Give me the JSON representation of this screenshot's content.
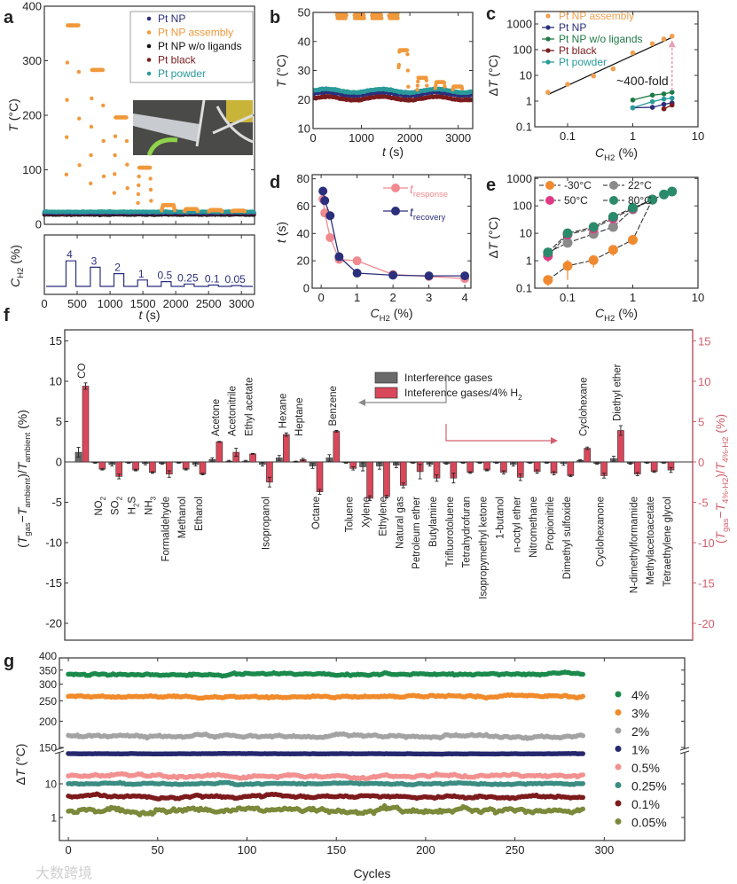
{
  "watermark": "大数跨境",
  "chart_data": [
    {
      "id": "a",
      "panel_label": "a",
      "type": "scatter",
      "xlabel": "*t* (s)",
      "ylabel": "*T* (°C)",
      "xlim": [
        0,
        3200
      ],
      "ylim": [
        0,
        400
      ],
      "xticks": [
        0,
        500,
        1000,
        1500,
        2000,
        2500,
        3000
      ],
      "yticks": [
        0,
        100,
        200,
        300,
        400
      ],
      "legend": [
        "Pt NP",
        "Pt NP assembly",
        "Pt NP w/o ligands",
        "Pt black",
        "Pt powder"
      ],
      "legend_colors": [
        "#2b2f7c",
        "#f0993c",
        "#111111",
        "#7a1c1f",
        "#2a9a9a"
      ],
      "legend_placement": "top-right",
      "baselines": {
        "Pt NP": 21,
        "Pt NP w/o ligands": 18,
        "Pt black": 20,
        "Pt powder": 23
      },
      "assembly_pulses": {
        "start_s": [
          330,
          700,
          1060,
          1420,
          1780,
          2130,
          2500,
          2850
        ],
        "duration_s": 190,
        "plateau_C": [
          365,
          283,
          196,
          104,
          35,
          28,
          26,
          25
        ],
        "baseline_C": 23
      },
      "inset": "photo",
      "sub": {
        "ylabel": "*C*_{H2} (%)",
        "concentrations": [
          4,
          3,
          2,
          1,
          0.5,
          0.25,
          0.1,
          0.05
        ],
        "step_labels": [
          "4",
          "3",
          "2",
          "1",
          "0.5",
          "0.25",
          "0.1",
          "0.05"
        ]
      }
    },
    {
      "id": "b",
      "panel_label": "b",
      "type": "scatter",
      "xlabel": "*t* (s)",
      "ylabel": "*T* (°C)",
      "xlim": [
        0,
        3300
      ],
      "ylim": [
        10,
        50
      ],
      "xticks": [
        0,
        1000,
        2000,
        3000
      ],
      "yticks": [
        10,
        20,
        30,
        40,
        50
      ],
      "assembly_pulses": {
        "start_s": [
          480,
          850,
          1210,
          1560,
          1760,
          2150,
          2520,
          2880
        ],
        "duration_s": 190,
        "plateau_C": [
          365,
          283,
          196,
          104,
          37,
          27.5,
          26,
          24.5
        ],
        "baseline_C": 23
      },
      "baselines": {
        "Pt NP": 22,
        "Pt NP w/o ligands": 22.6,
        "Pt black": 20.4,
        "Pt powder": 23
      }
    },
    {
      "id": "c",
      "panel_label": "c",
      "type": "line",
      "xlabel": "*C*_{H2} (%)",
      "ylabel": "Δ*T* (°C)",
      "xscale": "log",
      "yscale": "log",
      "xlim": [
        0.0314,
        10
      ],
      "ylim": [
        0.1,
        3040
      ],
      "xticks": [
        0.1,
        1,
        10
      ],
      "xticklabels": [
        "0.1",
        "1",
        "10"
      ],
      "yticks": [
        0.1,
        1,
        10,
        100,
        1000
      ],
      "yticklabels": [
        "0.1",
        "1",
        "10",
        "100",
        "1000"
      ],
      "series": [
        {
          "name": "Pt NP assembly",
          "color": "#f0a050",
          "line": false,
          "x": [
            0.05,
            0.1,
            0.25,
            0.5,
            1,
            2,
            3,
            4
          ],
          "y": [
            2.2,
            4.5,
            9.5,
            18,
            75,
            170,
            260,
            335
          ]
        },
        {
          "name": "Pt NP",
          "color": "#2b2f7c",
          "line": true,
          "x": [
            1,
            2,
            3,
            4
          ],
          "y": [
            0.55,
            0.57,
            0.75,
            0.85
          ]
        },
        {
          "name": "Pt NP w/o ligands",
          "color": "#1f7a45",
          "line": true,
          "x": [
            1,
            2,
            3,
            4
          ],
          "y": [
            1.1,
            1.7,
            1.9,
            2.2
          ]
        },
        {
          "name": "Pt black",
          "color": "#7a1c1f",
          "line": true,
          "x": [
            3,
            4
          ],
          "y": [
            0.5,
            0.7
          ]
        },
        {
          "name": "Pt powder",
          "color": "#2a9a9a",
          "line": true,
          "x": [
            1,
            2,
            3,
            4
          ],
          "y": [
            0.55,
            0.95,
            1.2,
            1.3
          ]
        }
      ],
      "fit": {
        "x": [
          0.05,
          4
        ],
        "y": [
          1.8,
          300
        ]
      },
      "annotation": "~400-fold",
      "annotation_arrow": {
        "x": 4,
        "from_y": 2.6,
        "to_y": 200
      },
      "legend_placement": "top-left"
    },
    {
      "id": "d",
      "panel_label": "d",
      "type": "line",
      "xlabel": "*C*_{H2} (%)",
      "ylabel": "*t* (s)",
      "xlim": [
        -0.25,
        4.17
      ],
      "ylim": [
        0,
        83
      ],
      "xticks": [
        0,
        1,
        2,
        3,
        4
      ],
      "yticks": [
        0,
        20,
        40,
        60,
        80
      ],
      "series": [
        {
          "name": "*t*_{response}",
          "color": "#f08a8f",
          "x": [
            0.05,
            0.1,
            0.25,
            0.5,
            1,
            2,
            3,
            4
          ],
          "y": [
            65,
            55,
            37,
            21,
            20,
            10,
            8.5,
            7
          ]
        },
        {
          "name": "*t*_{recovery}",
          "color": "#2b2f7c",
          "x": [
            0.05,
            0.1,
            0.25,
            0.5,
            1,
            2,
            3,
            4
          ],
          "y": [
            71,
            64,
            53,
            23,
            11,
            9.5,
            9,
            9
          ]
        }
      ],
      "legend_placement": "top-right"
    },
    {
      "id": "e",
      "panel_label": "e",
      "type": "line",
      "xlabel": "*C*_{H2} (%)",
      "ylabel": "Δ*T* (°C)",
      "xscale": "log",
      "yscale": "log",
      "xlim": [
        0.0314,
        10
      ],
      "ylim": [
        0.1,
        1100
      ],
      "xticks": [
        0.1,
        1,
        10
      ],
      "xticklabels": [
        "0.1",
        "1",
        "10"
      ],
      "yticks": [
        0.1,
        1,
        10,
        100,
        1000
      ],
      "yticklabels": [
        "0.1",
        "1",
        "10",
        "100",
        "1000"
      ],
      "series": [
        {
          "name": "-30°C",
          "color": "#f08a30",
          "x": [
            0.05,
            0.1,
            0.25,
            0.5,
            1,
            2
          ],
          "y": [
            0.2,
            0.65,
            1.05,
            2.5,
            5.8,
            170
          ],
          "err": [
            0.08,
            0.45,
            0.5,
            1.0,
            2.0,
            0
          ]
        },
        {
          "name": "22°C",
          "color": "#8a8a8a",
          "x": [
            0.05,
            0.1,
            0.25,
            0.5,
            1,
            2
          ],
          "y": [
            2.0,
            4.5,
            9.5,
            17,
            75,
            170
          ],
          "err": [
            0,
            0,
            0,
            0,
            0,
            0
          ]
        },
        {
          "name": "50°C",
          "color": "#e03a85",
          "x": [
            0.05,
            0.1,
            0.25,
            0.5,
            1,
            2
          ],
          "y": [
            1.5,
            9,
            15,
            35,
            80,
            170
          ],
          "err": [
            0.6,
            0,
            0,
            0,
            0,
            0
          ]
        },
        {
          "name": "80°C",
          "color": "#2a8a6c",
          "x": [
            0.05,
            0.1,
            0.25,
            0.5,
            1,
            2,
            3,
            4
          ],
          "y": [
            2.0,
            10,
            17,
            40,
            85,
            170,
            260,
            335
          ],
          "err": [
            0,
            0,
            0,
            0,
            0,
            0,
            0,
            0
          ]
        }
      ],
      "legend_placement": "top"
    },
    {
      "id": "f",
      "panel_label": "f",
      "type": "bar",
      "ylabel": "(*T*_{gas}−*T*_{ambient})/*T*_{ambient} (%)",
      "ylabel_right": "(*T*_{gas}−*T*_{4%-H2})/*T*_{4%-H2} (%)",
      "ylim": [
        -20,
        15
      ],
      "yticks": [
        -20,
        -15,
        -10,
        -5,
        0,
        5,
        10,
        15
      ],
      "legend": [
        "Interference gases",
        "Inteference gases/4% H_{2}"
      ],
      "legend_colors": [
        "#6a6a6a",
        "#d9475a"
      ],
      "right_axis_color": "#d2606e",
      "categories": [
        "CO",
        "NO_{2}",
        "SO_{2}",
        "H_{2}S",
        "NH_{3}",
        "Formaldehyde",
        "Methanol",
        "Ethanol",
        "Acetone",
        "Acetonitrile",
        "Ethyl acetate",
        "Isopropanol",
        "Hexane",
        "Heptane",
        "Octane",
        "Benzene",
        "Toluene",
        "Xylene",
        "Ethylene",
        "Natural gas",
        "Petroleum ether",
        "Butylamine",
        "Trifluorotoluene",
        "Tetrahydrofuran",
        "Isopropymethyl ketone",
        "1-butanol",
        "n-octyl ether",
        "Nitromethane",
        "Propionitrile",
        "Dimethyl sulfoxide",
        "Cyclohexane",
        "Cyclohexanone",
        "Diethyl ether",
        "N-dimethylformamide",
        "Methylacetoacetate",
        "Tetraethylene glycol"
      ],
      "series": [
        {
          "name": "Interference gases",
          "values": [
            1.2,
            -0.1,
            -0.3,
            -0.1,
            -0.2,
            -0.2,
            -0.1,
            -0.3,
            0.3,
            0.1,
            0.1,
            -0.3,
            0.5,
            0.05,
            -0.5,
            0.5,
            -0.1,
            -0.6,
            -0.5,
            -0.4,
            -0.1,
            -0.3,
            -0.2,
            -0.1,
            -0.1,
            -0.1,
            -0.3,
            -0.1,
            -0.1,
            -0.2,
            0.2,
            -0.2,
            0.4,
            -0.2,
            -0.1,
            -0.1
          ],
          "err": [
            0.6,
            0.05,
            0.2,
            0.05,
            0.15,
            0.1,
            0.05,
            0.2,
            0.2,
            0.1,
            0.1,
            0.2,
            0.3,
            0.05,
            0.3,
            0.4,
            0.05,
            0.5,
            0.4,
            0.3,
            0.05,
            0.2,
            0.1,
            0.05,
            0.05,
            0.05,
            0.2,
            0.05,
            0.05,
            0.2,
            0.1,
            0.1,
            0.3,
            0.1,
            0.05,
            0.05
          ]
        },
        {
          "name": "Inteference gases/4% H2",
          "values": [
            9.4,
            -0.9,
            -1.8,
            -1.0,
            -1.3,
            -1.5,
            -0.9,
            -1.5,
            2.5,
            1.2,
            1.0,
            -2.5,
            3.4,
            0.3,
            -3.7,
            3.8,
            -0.8,
            -4.5,
            -4.3,
            -2.9,
            -1.2,
            -2.0,
            -2.0,
            -1.3,
            -1.0,
            -1.3,
            -1.9,
            -1.2,
            -1.4,
            -1.7,
            1.7,
            -1.7,
            3.9,
            -1.5,
            -1.2,
            -1.0
          ],
          "err": [
            0.4,
            0.1,
            0.3,
            0.1,
            0.1,
            0.4,
            0.1,
            0.1,
            0.05,
            0.5,
            0.05,
            0.6,
            0.2,
            0.15,
            0.3,
            0.1,
            0.2,
            0.3,
            0.15,
            0.3,
            0.9,
            0.4,
            0.6,
            0.1,
            0.1,
            0.2,
            0.4,
            0.2,
            0.2,
            0.1,
            0.15,
            0.3,
            0.6,
            0.2,
            0.1,
            0.3
          ]
        }
      ],
      "legend_placement": "top-center"
    },
    {
      "id": "g",
      "panel_label": "g",
      "type": "scatter",
      "xlabel": "Cycles",
      "ylabel": "Δ*T* (°C)",
      "xlim": [
        -5,
        345
      ],
      "xticks": [
        0,
        50,
        100,
        150,
        200,
        250,
        300
      ],
      "yscale": "broken-log",
      "yticks_upper": [
        150,
        200,
        250,
        300,
        350,
        400
      ],
      "yticks_lower": [
        1,
        10
      ],
      "y_break_between": [
        100,
        150
      ],
      "n_cycles": 288,
      "series": [
        {
          "name": "4%",
          "color": "#1b8a4c",
          "mean": 335,
          "noise": 0.025
        },
        {
          "name": "3%",
          "color": "#f08a2a",
          "mean": 262,
          "noise": 0.025
        },
        {
          "name": "2%",
          "color": "#a3a3a3",
          "mean": 170,
          "noise": 0.03
        },
        {
          "name": "1%",
          "color": "#26286e",
          "mean": 78,
          "noise": 0.03
        },
        {
          "name": "0.5%",
          "color": "#f29090",
          "mean": 17,
          "noise": 0.18
        },
        {
          "name": "0.25%",
          "color": "#3b8c82",
          "mean": 10,
          "noise": 0.1
        },
        {
          "name": "0.1%",
          "color": "#7c1a1c",
          "mean": 4.2,
          "noise": 0.18
        },
        {
          "name": "0.05%",
          "color": "#7a8a3a",
          "mean": 1.6,
          "noise": 0.35
        }
      ],
      "legend_placement": "right"
    }
  ]
}
